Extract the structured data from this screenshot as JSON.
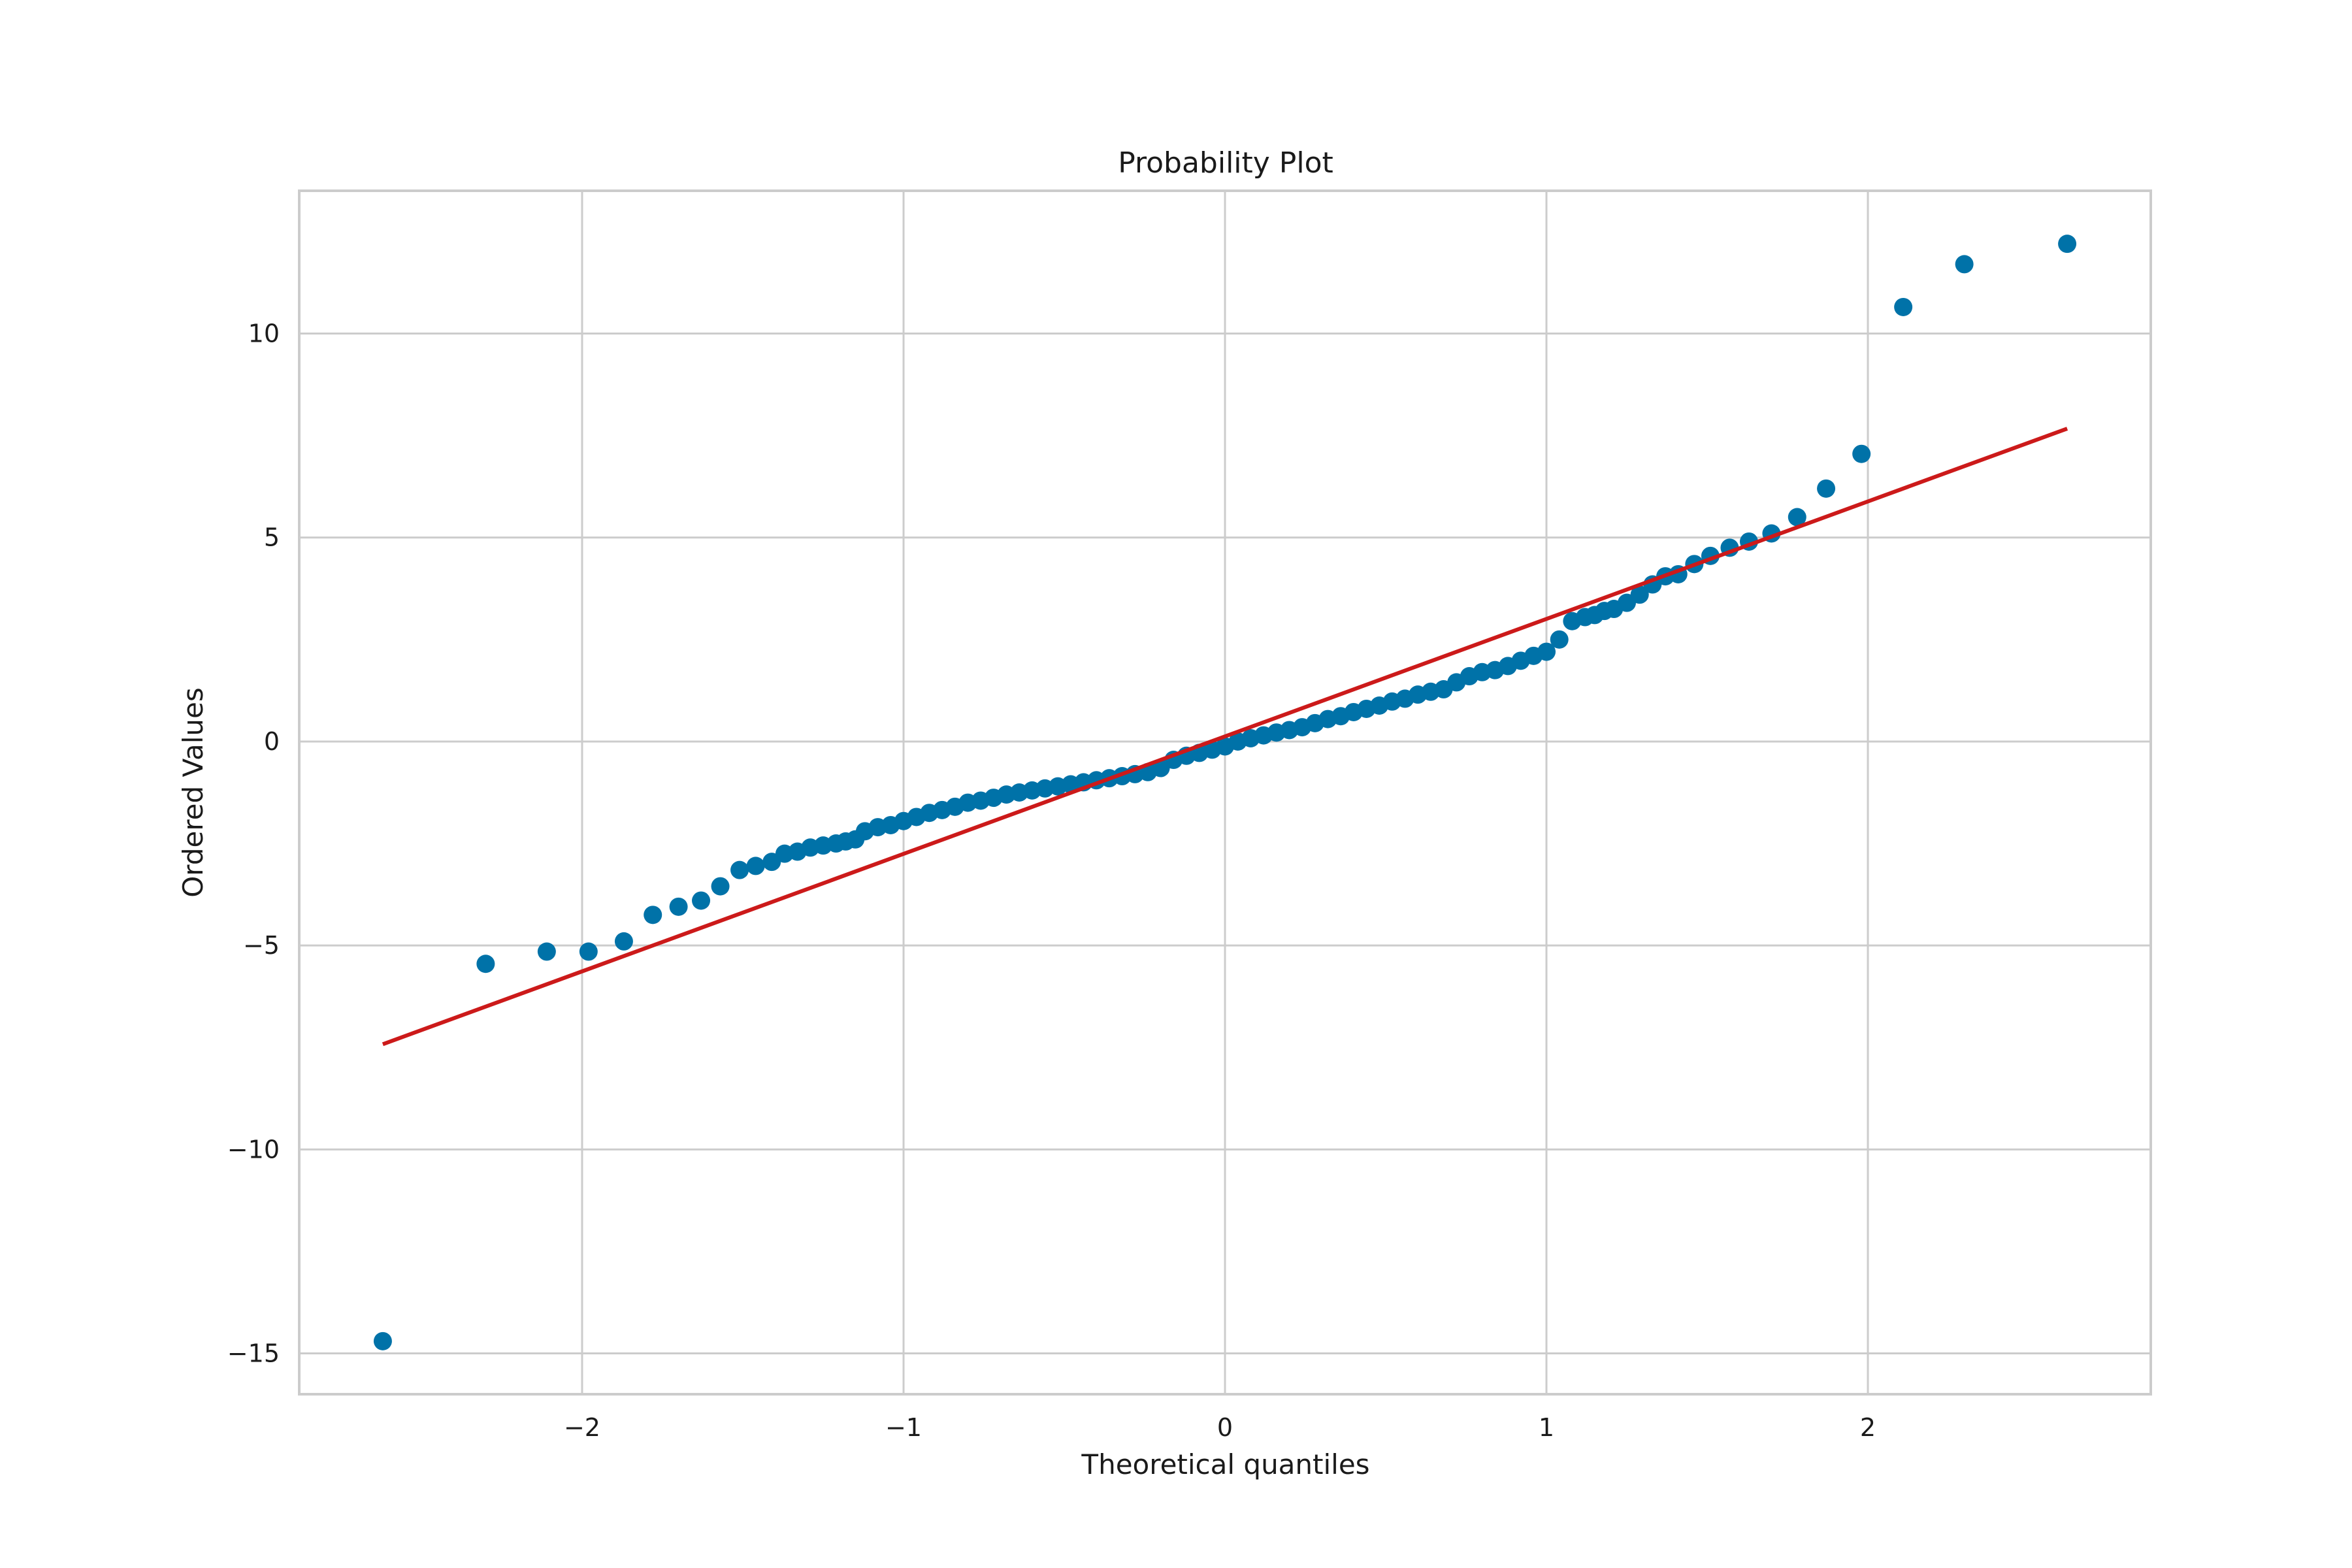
{
  "chart_data": {
    "type": "scatter",
    "title": "Probability Plot",
    "xlabel": "Theoretical quantiles",
    "ylabel": "Ordered Values",
    "xlim": [
      -2.88,
      2.88
    ],
    "ylim": [
      -16.0,
      13.5
    ],
    "xticks": [
      -2,
      -1,
      0,
      1,
      2
    ],
    "xtick_labels": [
      "−2",
      "−1",
      "0",
      "1",
      "2"
    ],
    "yticks": [
      -15,
      -10,
      -5,
      0,
      5,
      10
    ],
    "ytick_labels": [
      "−15",
      "−10",
      "−5",
      "0",
      "5",
      "10"
    ],
    "grid": true,
    "point_color": "#0072a8",
    "line_color": "#cc1a1a",
    "fit_line": {
      "x": [
        -2.62,
        2.62
      ],
      "y": [
        -7.42,
        7.67
      ]
    },
    "points": {
      "x": [
        -2.62,
        -2.3,
        -2.11,
        -1.98,
        -1.87,
        -1.78,
        -1.7,
        -1.63,
        -1.57,
        -1.51,
        -1.46,
        -1.41,
        -1.37,
        -1.33,
        -1.29,
        -1.25,
        -1.21,
        -1.18,
        -1.15,
        -1.12,
        -1.08,
        -1.04,
        -1.0,
        -0.96,
        -0.92,
        -0.88,
        -0.84,
        -0.8,
        -0.76,
        -0.72,
        -0.68,
        -0.64,
        -0.6,
        -0.56,
        -0.52,
        -0.48,
        -0.44,
        -0.4,
        -0.36,
        -0.32,
        -0.28,
        -0.24,
        -0.2,
        -0.16,
        -0.12,
        -0.08,
        -0.04,
        0.0,
        0.04,
        0.08,
        0.12,
        0.16,
        0.2,
        0.24,
        0.28,
        0.32,
        0.36,
        0.4,
        0.44,
        0.48,
        0.52,
        0.56,
        0.6,
        0.64,
        0.68,
        0.72,
        0.76,
        0.8,
        0.84,
        0.88,
        0.92,
        0.96,
        1.0,
        1.04,
        1.08,
        1.12,
        1.15,
        1.18,
        1.21,
        1.25,
        1.29,
        1.33,
        1.37,
        1.41,
        1.46,
        1.51,
        1.57,
        1.63,
        1.7,
        1.78,
        1.87,
        1.98,
        2.11,
        2.3,
        2.62
      ],
      "y": [
        -14.7,
        -5.45,
        -5.15,
        -5.15,
        -4.9,
        -4.25,
        -4.05,
        -3.9,
        -3.55,
        -3.15,
        -3.05,
        -2.95,
        -2.75,
        -2.7,
        -2.6,
        -2.55,
        -2.5,
        -2.45,
        -2.4,
        -2.2,
        -2.1,
        -2.05,
        -1.95,
        -1.85,
        -1.75,
        -1.68,
        -1.6,
        -1.5,
        -1.45,
        -1.38,
        -1.3,
        -1.25,
        -1.2,
        -1.15,
        -1.1,
        -1.05,
        -1.0,
        -0.95,
        -0.9,
        -0.85,
        -0.8,
        -0.75,
        -0.65,
        -0.45,
        -0.35,
        -0.28,
        -0.2,
        -0.12,
        0.0,
        0.08,
        0.15,
        0.22,
        0.28,
        0.35,
        0.45,
        0.55,
        0.62,
        0.72,
        0.8,
        0.88,
        0.98,
        1.05,
        1.15,
        1.22,
        1.28,
        1.45,
        1.6,
        1.7,
        1.75,
        1.85,
        1.98,
        2.1,
        2.2,
        2.5,
        2.95,
        3.05,
        3.1,
        3.2,
        3.25,
        3.4,
        3.6,
        3.85,
        4.05,
        4.1,
        4.35,
        4.55,
        4.75,
        4.9,
        5.1,
        5.5,
        6.2,
        7.05,
        10.65,
        11.7,
        12.2
      ]
    }
  }
}
